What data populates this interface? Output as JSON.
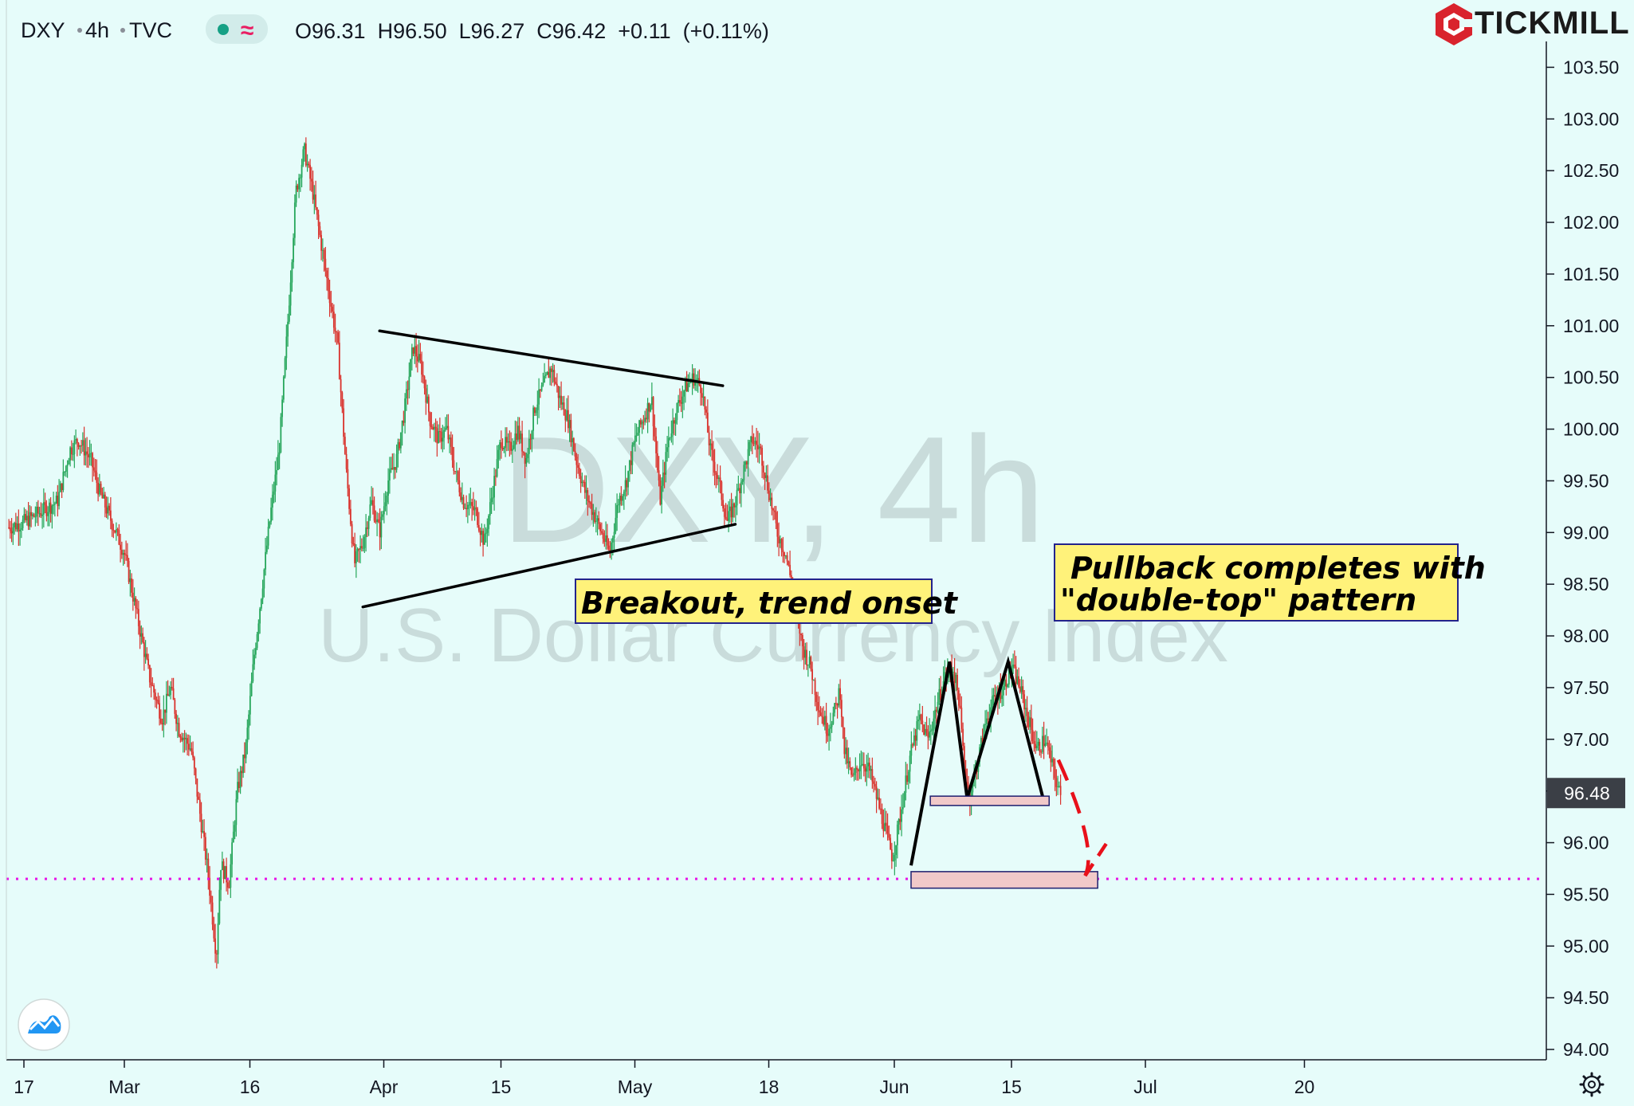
{
  "header": {
    "symbol": "DXY",
    "interval": "4h",
    "source": "TVC",
    "ohlc_text": "O96.31  H96.50  L96.27  C96.42  +0.11  (+0.11%)",
    "open": 96.31,
    "high": 96.5,
    "low": 96.27,
    "close": 96.42,
    "change": "+0.11",
    "change_pct": "(+0.11%)"
  },
  "brand": {
    "name": "TICKMILL",
    "color": "#d9232d"
  },
  "watermark": {
    "line1": "DXY, 4h",
    "line2": "U.S. Dollar Currency Index"
  },
  "last_price_label": "96.48",
  "colors": {
    "background": "#e6fcfa",
    "up": "#26a65b",
    "down": "#d9322c",
    "support_fill": "#f1c9c9",
    "support_border": "#1f1f6e",
    "dotted_line": "#e614e6",
    "annotation_fill": "#fff27a",
    "annotation_border": "#23238c",
    "projection": "#e8101a"
  },
  "icons": [
    "tradingview-logo-icon",
    "settings-gear-icon",
    "tickmill-logo-icon"
  ],
  "chart_data": {
    "type": "candlestick",
    "timeframe": "4h",
    "y_axis": {
      "min": 93.9,
      "max": 103.75,
      "ticks": [
        "103.50",
        "103.00",
        "102.50",
        "102.00",
        "101.50",
        "101.00",
        "100.50",
        "100.00",
        "99.50",
        "99.00",
        "98.50",
        "98.00",
        "97.50",
        "97.00",
        "96.50",
        "96.00",
        "95.50",
        "95.00",
        "94.50",
        "94.00"
      ]
    },
    "x_axis": {
      "ticks": [
        {
          "label": "17",
          "day": 0
        },
        {
          "label": "Mar",
          "day": 12
        },
        {
          "label": "16",
          "day": 27
        },
        {
          "label": "Apr",
          "day": 43
        },
        {
          "label": "15",
          "day": 57
        },
        {
          "label": "May",
          "day": 73
        },
        {
          "label": "18",
          "day": 89
        },
        {
          "label": "Jun",
          "day": 104
        },
        {
          "label": "15",
          "day": 118
        },
        {
          "label": "Jul",
          "day": 134
        },
        {
          "label": "20",
          "day": 153
        }
      ]
    },
    "price_path": [
      [
        -1.8,
        99.05
      ],
      [
        0,
        99.1
      ],
      [
        2,
        99.2
      ],
      [
        4,
        99.3
      ],
      [
        5.5,
        99.8
      ],
      [
        6.5,
        99.9
      ],
      [
        8,
        99.7
      ],
      [
        9,
        99.4
      ],
      [
        10.5,
        99.1
      ],
      [
        12,
        98.8
      ],
      [
        13.5,
        98.2
      ],
      [
        15,
        97.6
      ],
      [
        16.5,
        97.2
      ],
      [
        17.5,
        97.5
      ],
      [
        18.5,
        97.1
      ],
      [
        20,
        96.9
      ],
      [
        21,
        96.3
      ],
      [
        22,
        95.7
      ],
      [
        22.5,
        95.3
      ],
      [
        23,
        94.9
      ],
      [
        23.5,
        95.8
      ],
      [
        24.5,
        95.6
      ],
      [
        25.5,
        96.5
      ],
      [
        26.5,
        96.9
      ],
      [
        27.5,
        97.8
      ],
      [
        28.5,
        98.5
      ],
      [
        29.5,
        99.2
      ],
      [
        30.5,
        99.8
      ],
      [
        31.5,
        101.0
      ],
      [
        32.5,
        102.3
      ],
      [
        33.5,
        102.7
      ],
      [
        34.5,
        102.3
      ],
      [
        35.5,
        101.8
      ],
      [
        36.5,
        101.3
      ],
      [
        37.5,
        100.8
      ],
      [
        38.5,
        99.6
      ],
      [
        39.5,
        98.7
      ],
      [
        40.5,
        98.9
      ],
      [
        41.5,
        99.3
      ],
      [
        42.5,
        99.0
      ],
      [
        43.5,
        99.5
      ],
      [
        44.5,
        99.7
      ],
      [
        45.5,
        100.2
      ],
      [
        46.5,
        100.8
      ],
      [
        47.5,
        100.6
      ],
      [
        48.5,
        100.1
      ],
      [
        49.5,
        99.9
      ],
      [
        50.5,
        100.0
      ],
      [
        51.5,
        99.6
      ],
      [
        52.5,
        99.3
      ],
      [
        54,
        99.2
      ],
      [
        55,
        98.9
      ],
      [
        56,
        99.4
      ],
      [
        57,
        99.9
      ],
      [
        58,
        99.8
      ],
      [
        59,
        100.0
      ],
      [
        60,
        99.7
      ],
      [
        61,
        100.2
      ],
      [
        62,
        100.4
      ],
      [
        63,
        100.6
      ],
      [
        64,
        100.3
      ],
      [
        65,
        100.1
      ],
      [
        66,
        99.7
      ],
      [
        67,
        99.4
      ],
      [
        68,
        99.2
      ],
      [
        69,
        99.0
      ],
      [
        70,
        98.8
      ],
      [
        71,
        99.3
      ],
      [
        72,
        99.5
      ],
      [
        73,
        99.9
      ],
      [
        74,
        100.1
      ],
      [
        75,
        100.3
      ],
      [
        75.5,
        99.8
      ],
      [
        76,
        99.3
      ],
      [
        77,
        99.9
      ],
      [
        78,
        100.2
      ],
      [
        79,
        100.4
      ],
      [
        80,
        100.5
      ],
      [
        81,
        100.4
      ],
      [
        82,
        99.8
      ],
      [
        83,
        99.5
      ],
      [
        84,
        99.1
      ],
      [
        85,
        99.3
      ],
      [
        86,
        99.6
      ],
      [
        87,
        99.9
      ],
      [
        88,
        99.8
      ],
      [
        89,
        99.4
      ],
      [
        90,
        99.0
      ],
      [
        91,
        98.8
      ],
      [
        92,
        98.4
      ],
      [
        93,
        97.9
      ],
      [
        94,
        97.7
      ],
      [
        95,
        97.3
      ],
      [
        96,
        97.1
      ],
      [
        97,
        97.3
      ],
      [
        97.5,
        97.5
      ],
      [
        98,
        96.9
      ],
      [
        99,
        96.6
      ],
      [
        100,
        96.8
      ],
      [
        101,
        96.7
      ],
      [
        102,
        96.4
      ],
      [
        103,
        96.1
      ],
      [
        103.8,
        95.85
      ],
      [
        104.8,
        96.3
      ],
      [
        105.8,
        96.8
      ],
      [
        107,
        97.2
      ],
      [
        108,
        97.0
      ],
      [
        109,
        97.3
      ],
      [
        110,
        97.6
      ],
      [
        111,
        97.7
      ],
      [
        111.7,
        97.4
      ],
      [
        112.4,
        96.7
      ],
      [
        113,
        96.45
      ],
      [
        114,
        96.8
      ],
      [
        115,
        97.2
      ],
      [
        116,
        97.4
      ],
      [
        117,
        97.5
      ],
      [
        118,
        97.7
      ],
      [
        119,
        97.5
      ],
      [
        120,
        97.2
      ],
      [
        121,
        96.9
      ],
      [
        122,
        97.0
      ],
      [
        123,
        96.7
      ],
      [
        124,
        96.4
      ]
    ],
    "annotations": [
      {
        "type": "trendline",
        "name": "triangle-upper",
        "from": [
          42.5,
          100.95
        ],
        "to": [
          83.5,
          100.42
        ]
      },
      {
        "type": "trendline",
        "name": "triangle-lower",
        "from": [
          40.5,
          98.28
        ],
        "to": [
          85,
          99.08
        ]
      },
      {
        "type": "polyline",
        "name": "double-top",
        "points": [
          [
            106,
            95.78
          ],
          [
            110.6,
            97.75
          ],
          [
            112.7,
            96.43
          ],
          [
            117.6,
            97.75
          ],
          [
            121.8,
            96.42
          ]
        ]
      },
      {
        "type": "box",
        "name": "neckline-zone",
        "from": [
          108.3,
          96.45
        ],
        "to": [
          122.5,
          96.36
        ]
      },
      {
        "type": "box",
        "name": "target-zone",
        "from": [
          106,
          95.72
        ],
        "to": [
          128.3,
          95.56
        ]
      },
      {
        "type": "hline",
        "name": "dotted-level",
        "value": 95.65
      },
      {
        "type": "projection",
        "name": "projected-drop",
        "path": "curve down from 96.8 to 95.7"
      },
      {
        "type": "label",
        "text": "Breakout, trend onset"
      },
      {
        "type": "label",
        "text": "Pullback completes with\n\"double-top\" pattern"
      }
    ]
  }
}
